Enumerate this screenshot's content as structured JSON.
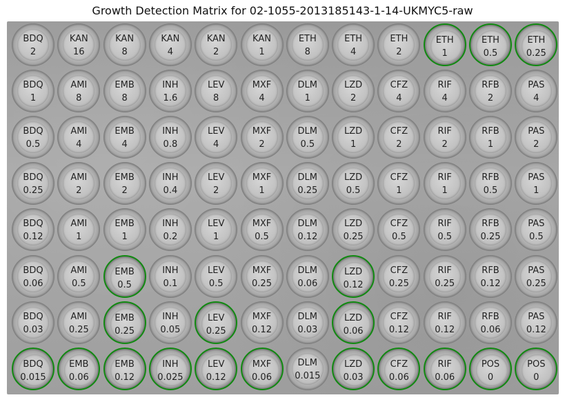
{
  "title": "Growth Detection Matrix for 02-1055-2013185143-1-14-UKMYC5-raw",
  "colors": {
    "growth_ring": "#118a11"
  },
  "wells": [
    [
      {
        "drug": "BDQ",
        "conc": "2",
        "growth": false
      },
      {
        "drug": "KAN",
        "conc": "16",
        "growth": false
      },
      {
        "drug": "KAN",
        "conc": "8",
        "growth": false
      },
      {
        "drug": "KAN",
        "conc": "4",
        "growth": false
      },
      {
        "drug": "KAN",
        "conc": "2",
        "growth": false
      },
      {
        "drug": "KAN",
        "conc": "1",
        "growth": false
      },
      {
        "drug": "ETH",
        "conc": "8",
        "growth": false
      },
      {
        "drug": "ETH",
        "conc": "4",
        "growth": false
      },
      {
        "drug": "ETH",
        "conc": "2",
        "growth": false
      },
      {
        "drug": "ETH",
        "conc": "1",
        "growth": true
      },
      {
        "drug": "ETH",
        "conc": "0.5",
        "growth": true
      },
      {
        "drug": "ETH",
        "conc": "0.25",
        "growth": true
      }
    ],
    [
      {
        "drug": "BDQ",
        "conc": "1",
        "growth": false
      },
      {
        "drug": "AMI",
        "conc": "8",
        "growth": false
      },
      {
        "drug": "EMB",
        "conc": "8",
        "growth": false
      },
      {
        "drug": "INH",
        "conc": "1.6",
        "growth": false
      },
      {
        "drug": "LEV",
        "conc": "8",
        "growth": false
      },
      {
        "drug": "MXF",
        "conc": "4",
        "growth": false
      },
      {
        "drug": "DLM",
        "conc": "1",
        "growth": false
      },
      {
        "drug": "LZD",
        "conc": "2",
        "growth": false
      },
      {
        "drug": "CFZ",
        "conc": "4",
        "growth": false
      },
      {
        "drug": "RIF",
        "conc": "4",
        "growth": false
      },
      {
        "drug": "RFB",
        "conc": "2",
        "growth": false
      },
      {
        "drug": "PAS",
        "conc": "4",
        "growth": false
      }
    ],
    [
      {
        "drug": "BDQ",
        "conc": "0.5",
        "growth": false
      },
      {
        "drug": "AMI",
        "conc": "4",
        "growth": false
      },
      {
        "drug": "EMB",
        "conc": "4",
        "growth": false
      },
      {
        "drug": "INH",
        "conc": "0.8",
        "growth": false
      },
      {
        "drug": "LEV",
        "conc": "4",
        "growth": false
      },
      {
        "drug": "MXF",
        "conc": "2",
        "growth": false
      },
      {
        "drug": "DLM",
        "conc": "0.5",
        "growth": false
      },
      {
        "drug": "LZD",
        "conc": "1",
        "growth": false
      },
      {
        "drug": "CFZ",
        "conc": "2",
        "growth": false
      },
      {
        "drug": "RIF",
        "conc": "2",
        "growth": false
      },
      {
        "drug": "RFB",
        "conc": "1",
        "growth": false
      },
      {
        "drug": "PAS",
        "conc": "2",
        "growth": false
      }
    ],
    [
      {
        "drug": "BDQ",
        "conc": "0.25",
        "growth": false
      },
      {
        "drug": "AMI",
        "conc": "2",
        "growth": false
      },
      {
        "drug": "EMB",
        "conc": "2",
        "growth": false
      },
      {
        "drug": "INH",
        "conc": "0.4",
        "growth": false
      },
      {
        "drug": "LEV",
        "conc": "2",
        "growth": false
      },
      {
        "drug": "MXF",
        "conc": "1",
        "growth": false
      },
      {
        "drug": "DLM",
        "conc": "0.25",
        "growth": false
      },
      {
        "drug": "LZD",
        "conc": "0.5",
        "growth": false
      },
      {
        "drug": "CFZ",
        "conc": "1",
        "growth": false
      },
      {
        "drug": "RIF",
        "conc": "1",
        "growth": false
      },
      {
        "drug": "RFB",
        "conc": "0.5",
        "growth": false
      },
      {
        "drug": "PAS",
        "conc": "1",
        "growth": false
      }
    ],
    [
      {
        "drug": "BDQ",
        "conc": "0.12",
        "growth": false
      },
      {
        "drug": "AMI",
        "conc": "1",
        "growth": false
      },
      {
        "drug": "EMB",
        "conc": "1",
        "growth": false
      },
      {
        "drug": "INH",
        "conc": "0.2",
        "growth": false
      },
      {
        "drug": "LEV",
        "conc": "1",
        "growth": false
      },
      {
        "drug": "MXF",
        "conc": "0.5",
        "growth": false
      },
      {
        "drug": "DLM",
        "conc": "0.12",
        "growth": false
      },
      {
        "drug": "LZD",
        "conc": "0.25",
        "growth": false
      },
      {
        "drug": "CFZ",
        "conc": "0.5",
        "growth": false
      },
      {
        "drug": "RIF",
        "conc": "0.5",
        "growth": false
      },
      {
        "drug": "RFB",
        "conc": "0.25",
        "growth": false
      },
      {
        "drug": "PAS",
        "conc": "0.5",
        "growth": false
      }
    ],
    [
      {
        "drug": "BDQ",
        "conc": "0.06",
        "growth": false
      },
      {
        "drug": "AMI",
        "conc": "0.5",
        "growth": false
      },
      {
        "drug": "EMB",
        "conc": "0.5",
        "growth": true
      },
      {
        "drug": "INH",
        "conc": "0.1",
        "growth": false
      },
      {
        "drug": "LEV",
        "conc": "0.5",
        "growth": false
      },
      {
        "drug": "MXF",
        "conc": "0.25",
        "growth": false
      },
      {
        "drug": "DLM",
        "conc": "0.06",
        "growth": false
      },
      {
        "drug": "LZD",
        "conc": "0.12",
        "growth": true
      },
      {
        "drug": "CFZ",
        "conc": "0.25",
        "growth": false
      },
      {
        "drug": "RIF",
        "conc": "0.25",
        "growth": false
      },
      {
        "drug": "RFB",
        "conc": "0.12",
        "growth": false
      },
      {
        "drug": "PAS",
        "conc": "0.25",
        "growth": false
      }
    ],
    [
      {
        "drug": "BDQ",
        "conc": "0.03",
        "growth": false
      },
      {
        "drug": "AMI",
        "conc": "0.25",
        "growth": false
      },
      {
        "drug": "EMB",
        "conc": "0.25",
        "growth": true
      },
      {
        "drug": "INH",
        "conc": "0.05",
        "growth": false
      },
      {
        "drug": "LEV",
        "conc": "0.25",
        "growth": true
      },
      {
        "drug": "MXF",
        "conc": "0.12",
        "growth": false
      },
      {
        "drug": "DLM",
        "conc": "0.03",
        "growth": false
      },
      {
        "drug": "LZD",
        "conc": "0.06",
        "growth": true
      },
      {
        "drug": "CFZ",
        "conc": "0.12",
        "growth": false
      },
      {
        "drug": "RIF",
        "conc": "0.12",
        "growth": false
      },
      {
        "drug": "RFB",
        "conc": "0.06",
        "growth": false
      },
      {
        "drug": "PAS",
        "conc": "0.12",
        "growth": false
      }
    ],
    [
      {
        "drug": "BDQ",
        "conc": "0.015",
        "growth": true
      },
      {
        "drug": "EMB",
        "conc": "0.06",
        "growth": true
      },
      {
        "drug": "EMB",
        "conc": "0.12",
        "growth": true
      },
      {
        "drug": "INH",
        "conc": "0.025",
        "growth": true
      },
      {
        "drug": "LEV",
        "conc": "0.12",
        "growth": true
      },
      {
        "drug": "MXF",
        "conc": "0.06",
        "growth": true
      },
      {
        "drug": "DLM",
        "conc": "0.015",
        "growth": false
      },
      {
        "drug": "LZD",
        "conc": "0.03",
        "growth": true
      },
      {
        "drug": "CFZ",
        "conc": "0.06",
        "growth": true
      },
      {
        "drug": "RIF",
        "conc": "0.06",
        "growth": true
      },
      {
        "drug": "POS",
        "conc": "0",
        "growth": true
      },
      {
        "drug": "POS",
        "conc": "0",
        "growth": true
      }
    ]
  ]
}
